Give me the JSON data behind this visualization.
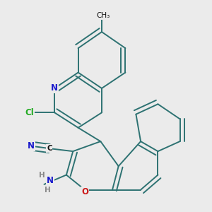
{
  "bg_color": "#ebebeb",
  "bond_color": "#2d7272",
  "bond_width": 1.4,
  "dbo": 0.018,
  "atom_colors": {
    "N": "#1a1acc",
    "O": "#cc1a1a",
    "Cl": "#22aa22",
    "H": "#888888",
    "C": "#111111"
  },
  "font_size": 8.5
}
